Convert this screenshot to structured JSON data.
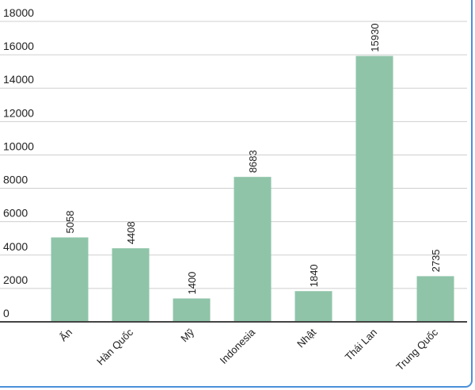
{
  "chart_data": {
    "type": "bar",
    "categories": [
      "Ấn",
      "Hàn Quốc",
      "Mỹ",
      "Indonesia",
      "Nhật",
      "Thái Lan",
      "Trung Quốc"
    ],
    "values": [
      5058,
      4408,
      1400,
      8683,
      1840,
      15930,
      2735
    ],
    "color": "#8fc4a8",
    "ylim": [
      0,
      18000
    ],
    "yticks": [
      0,
      2000,
      4000,
      6000,
      8000,
      10000,
      12000,
      14000,
      16000,
      18000
    ],
    "grid": true
  }
}
